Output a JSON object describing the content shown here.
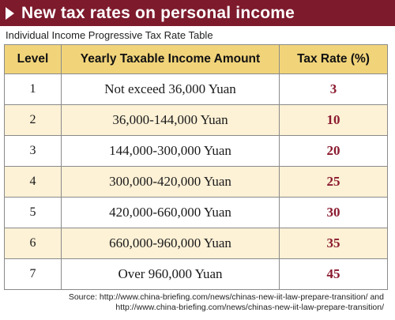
{
  "banner": {
    "title": "New tax rates on personal income",
    "color": "#7d1a2c"
  },
  "subtitle": "Individual Income Progressive Tax Rate Table",
  "table": {
    "header_color": "#f1d47a",
    "tint_color": "#fdf1d6",
    "rate_color": "#8b1a2e",
    "headers": {
      "level": "Level",
      "income": "Yearly Taxable Income Amount",
      "rate": "Tax Rate (%)"
    },
    "rows": [
      {
        "level": "1",
        "income": "Not exceed 36,000 Yuan",
        "rate": "3"
      },
      {
        "level": "2",
        "income": "36,000-144,000 Yuan",
        "rate": "10"
      },
      {
        "level": "3",
        "income": "144,000-300,000 Yuan",
        "rate": "20"
      },
      {
        "level": "4",
        "income": "300,000-420,000 Yuan",
        "rate": "25"
      },
      {
        "level": "5",
        "income": "420,000-660,000 Yuan",
        "rate": "30"
      },
      {
        "level": "6",
        "income": "660,000-960,000 Yuan",
        "rate": "35"
      },
      {
        "level": "7",
        "income": "Over 960,000 Yuan",
        "rate": "45"
      }
    ]
  },
  "source": {
    "line1": "Source: http://www.china-briefing.com/news/chinas-new-iit-law-prepare-transition/ and",
    "line2": "http://www.china-briefing.com/news/chinas-new-iit-law-prepare-transition/"
  }
}
